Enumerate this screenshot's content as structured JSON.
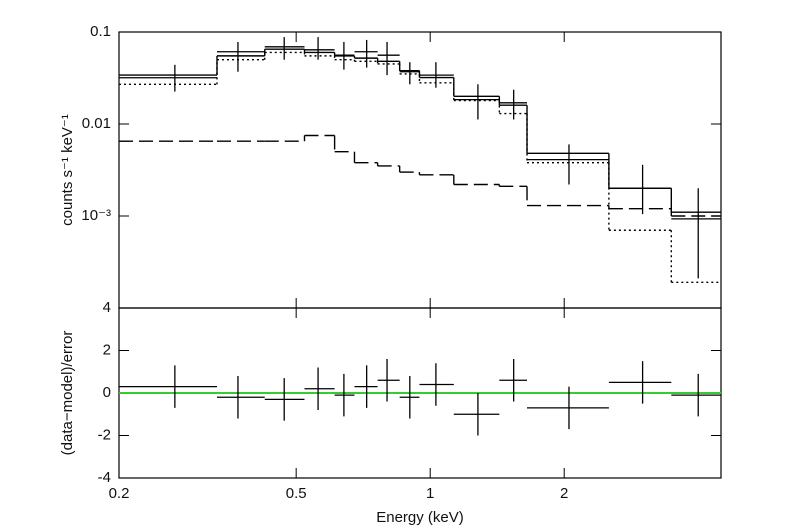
{
  "chart_data": [
    {
      "type": "spectrum",
      "ylabel": "counts s⁻¹ keV⁻¹",
      "log_x": true,
      "log_y": true,
      "xlim": [
        0.2,
        4.5
      ],
      "ylim": [
        0.0001,
        0.1
      ],
      "xticks": [
        0.2,
        0.5,
        1,
        2
      ],
      "yticks": [
        0.1,
        0.01,
        {
          "value": 0.001,
          "label": "10⁻³"
        }
      ],
      "x": [
        0.267,
        0.37,
        0.47,
        0.56,
        0.64,
        0.72,
        0.8,
        0.9,
        1.03,
        1.28,
        1.54,
        2.05,
        3.0,
        4.0
      ],
      "x_low": [
        0.2,
        0.332,
        0.425,
        0.522,
        0.61,
        0.676,
        0.762,
        0.854,
        0.946,
        1.13,
        1.43,
        1.65,
        2.52,
        3.48
      ],
      "x_high": [
        0.332,
        0.425,
        0.522,
        0.61,
        0.676,
        0.762,
        0.854,
        0.946,
        1.13,
        1.43,
        1.65,
        2.52,
        3.48,
        4.5
      ],
      "y": [
        0.0318,
        0.061,
        0.069,
        0.064,
        0.056,
        0.061,
        0.056,
        0.037,
        0.034,
        0.0184,
        0.017,
        0.0041,
        0.002,
        0.00093
      ],
      "y_low": [
        0.0225,
        0.037,
        0.05,
        0.05,
        0.039,
        0.041,
        0.034,
        0.027,
        0.0248,
        0.0112,
        0.0112,
        0.0022,
        0.00105,
        0.00021
      ],
      "y_high": [
        0.044,
        0.078,
        0.088,
        0.088,
        0.078,
        0.082,
        0.078,
        0.047,
        0.047,
        0.027,
        0.0236,
        0.006,
        0.0036,
        0.002
      ],
      "data_color": "#000000",
      "models": [
        {
          "dash": "solid",
          "color": "#000000",
          "bins": [
            0.2,
            0.332,
            0.425,
            0.522,
            0.61,
            0.676,
            0.762,
            0.854,
            0.946,
            1.13,
            1.43,
            1.65,
            2.52,
            3.48,
            4.5
          ],
          "values": [
            0.034,
            0.055,
            0.065,
            0.06,
            0.055,
            0.052,
            0.048,
            0.038,
            0.032,
            0.02,
            0.016,
            0.0048,
            0.002,
            0.0011
          ]
        },
        {
          "dash": "dotted",
          "color": "#000000",
          "bins": [
            0.2,
            0.332,
            0.425,
            0.522,
            0.61,
            0.676,
            0.762,
            0.854,
            0.946,
            1.13,
            1.43,
            1.65,
            2.52,
            3.48,
            4.5
          ],
          "values": [
            0.027,
            0.05,
            0.06,
            0.055,
            0.05,
            0.048,
            0.045,
            0.035,
            0.028,
            0.018,
            0.013,
            0.0038,
            0.0007,
            0.00019
          ]
        },
        {
          "dash": "dashed",
          "color": "#000000",
          "bins": [
            0.2,
            0.332,
            0.425,
            0.522,
            0.61,
            0.676,
            0.762,
            0.854,
            0.946,
            1.13,
            1.43,
            1.65,
            2.52,
            3.48,
            4.5
          ],
          "values": [
            0.0065,
            0.0065,
            0.0065,
            0.0075,
            0.005,
            0.0038,
            0.0035,
            0.003,
            0.0028,
            0.0022,
            0.0021,
            0.0013,
            0.0012,
            0.001
          ]
        }
      ]
    },
    {
      "type": "residual",
      "xlabel": "Energy (keV)",
      "ylabel": "(data−model)/error",
      "log_x": true,
      "log_y": false,
      "xlim": [
        0.2,
        4.5
      ],
      "ylim": [
        -4,
        4
      ],
      "xticks": [
        0.2,
        0.5,
        1,
        2
      ],
      "yticks": [
        -4,
        -2,
        0,
        2,
        4
      ],
      "x": [
        0.267,
        0.37,
        0.47,
        0.56,
        0.64,
        0.72,
        0.8,
        0.9,
        1.03,
        1.28,
        1.54,
        2.05,
        3.0,
        4.0
      ],
      "x_low": [
        0.2,
        0.332,
        0.425,
        0.522,
        0.61,
        0.676,
        0.762,
        0.854,
        0.946,
        1.13,
        1.43,
        1.65,
        2.52,
        3.48
      ],
      "x_high": [
        0.332,
        0.425,
        0.522,
        0.61,
        0.676,
        0.762,
        0.854,
        0.946,
        1.13,
        1.43,
        1.65,
        2.52,
        3.48,
        4.5
      ],
      "y": [
        0.3,
        -0.2,
        -0.3,
        0.2,
        -0.1,
        0.3,
        0.6,
        -0.2,
        0.4,
        -1.0,
        0.6,
        -0.7,
        0.5,
        -0.1
      ],
      "y_low": [
        -0.7,
        -1.2,
        -1.3,
        -0.8,
        -1.1,
        -0.7,
        -0.4,
        -1.2,
        -0.6,
        -2.0,
        -0.4,
        -1.7,
        -0.5,
        -1.1
      ],
      "y_high": [
        1.3,
        0.8,
        0.7,
        1.2,
        0.9,
        1.3,
        1.6,
        0.8,
        1.4,
        0.0,
        1.6,
        0.3,
        1.5,
        0.9
      ],
      "data_color": "#000000",
      "reference_line": 0,
      "reference_color": "#33cc33"
    }
  ]
}
